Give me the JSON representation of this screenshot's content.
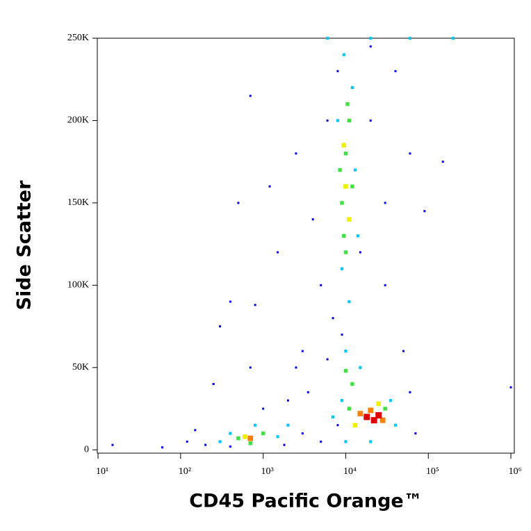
{
  "chart_data": {
    "type": "scatter",
    "xlabel": "CD45 Pacific Orange™",
    "ylabel": "Side Scatter",
    "xscale": "log",
    "xlim": [
      9.8,
      1100000
    ],
    "ylim": [
      -2000,
      250000
    ],
    "xticks": [
      {
        "value": 10,
        "label": "10¹"
      },
      {
        "value": 100,
        "label": "10²"
      },
      {
        "value": 1000,
        "label": "10³"
      },
      {
        "value": 10000,
        "label": "10⁴"
      },
      {
        "value": 100000,
        "label": "10⁵"
      },
      {
        "value": 1000000,
        "label": "10⁶"
      }
    ],
    "yticks": [
      0,
      {
        "value": 50000,
        "label": "50K"
      },
      {
        "value": 100000,
        "label": "100K"
      },
      {
        "value": 150000,
        "label": "150K"
      },
      {
        "value": 200000,
        "label": "200K"
      },
      {
        "value": 250000,
        "label": "250K"
      }
    ],
    "series": [
      {
        "color": "#0000ee",
        "x": [
          15,
          60,
          120,
          200,
          250,
          300,
          400,
          500,
          700,
          800,
          1200,
          1500,
          2500,
          3000,
          4000,
          5000,
          6000,
          2000,
          1000,
          3500,
          6000,
          7000,
          8000,
          20000,
          30000,
          40000,
          60000,
          90000,
          150000,
          30000,
          50000,
          60000,
          70000,
          5000,
          8000,
          400,
          1800,
          3000,
          9000,
          15000,
          20000,
          700,
          1000000,
          150,
          2500
        ],
        "y": [
          3000,
          1500,
          5000,
          3000,
          40000,
          75000,
          90000,
          150000,
          215000,
          88000,
          160000,
          120000,
          180000,
          60000,
          140000,
          100000,
          200000,
          30000,
          25000,
          35000,
          55000,
          80000,
          230000,
          200000,
          150000,
          230000,
          180000,
          145000,
          175000,
          100000,
          60000,
          35000,
          10000,
          5000,
          15000,
          2000,
          3000,
          10000,
          70000,
          120000,
          245000,
          50000,
          38000,
          12000,
          50000
        ]
      },
      {
        "color": "#00c8ff",
        "x": [
          300,
          400,
          1500,
          2000,
          800,
          9000,
          10000,
          9000,
          12000,
          8000,
          14000,
          11000,
          35000,
          40000,
          7000,
          15000,
          9500,
          13000,
          10000,
          20000,
          6000,
          20000,
          60000,
          200000
        ],
        "y": [
          5000,
          10000,
          8000,
          15000,
          15000,
          30000,
          60000,
          110000,
          220000,
          200000,
          130000,
          90000,
          30000,
          15000,
          20000,
          50000,
          240000,
          170000,
          5000,
          5000,
          250000,
          250000,
          250000,
          250000
        ]
      },
      {
        "color": "#40e040",
        "x": [
          500,
          1000,
          700,
          9000,
          10000,
          11000,
          9500,
          10000,
          10000,
          12000,
          11000,
          30000,
          12000,
          8500,
          10500
        ],
        "y": [
          7000,
          10000,
          4000,
          150000,
          180000,
          200000,
          130000,
          120000,
          48000,
          40000,
          25000,
          25000,
          160000,
          170000,
          210000
        ]
      },
      {
        "color": "#f0f000",
        "x": [
          600,
          10000,
          9500,
          11000,
          13000,
          25000
        ],
        "y": [
          8000,
          160000,
          185000,
          140000,
          15000,
          28000
        ]
      },
      {
        "color": "#ff8000",
        "x": [
          700,
          15000,
          28000,
          20000
        ],
        "y": [
          7000,
          22000,
          18000,
          24000
        ]
      },
      {
        "color": "#e00000",
        "x": [
          18000,
          22000,
          25000
        ],
        "y": [
          20000,
          18000,
          21000
        ]
      }
    ]
  }
}
